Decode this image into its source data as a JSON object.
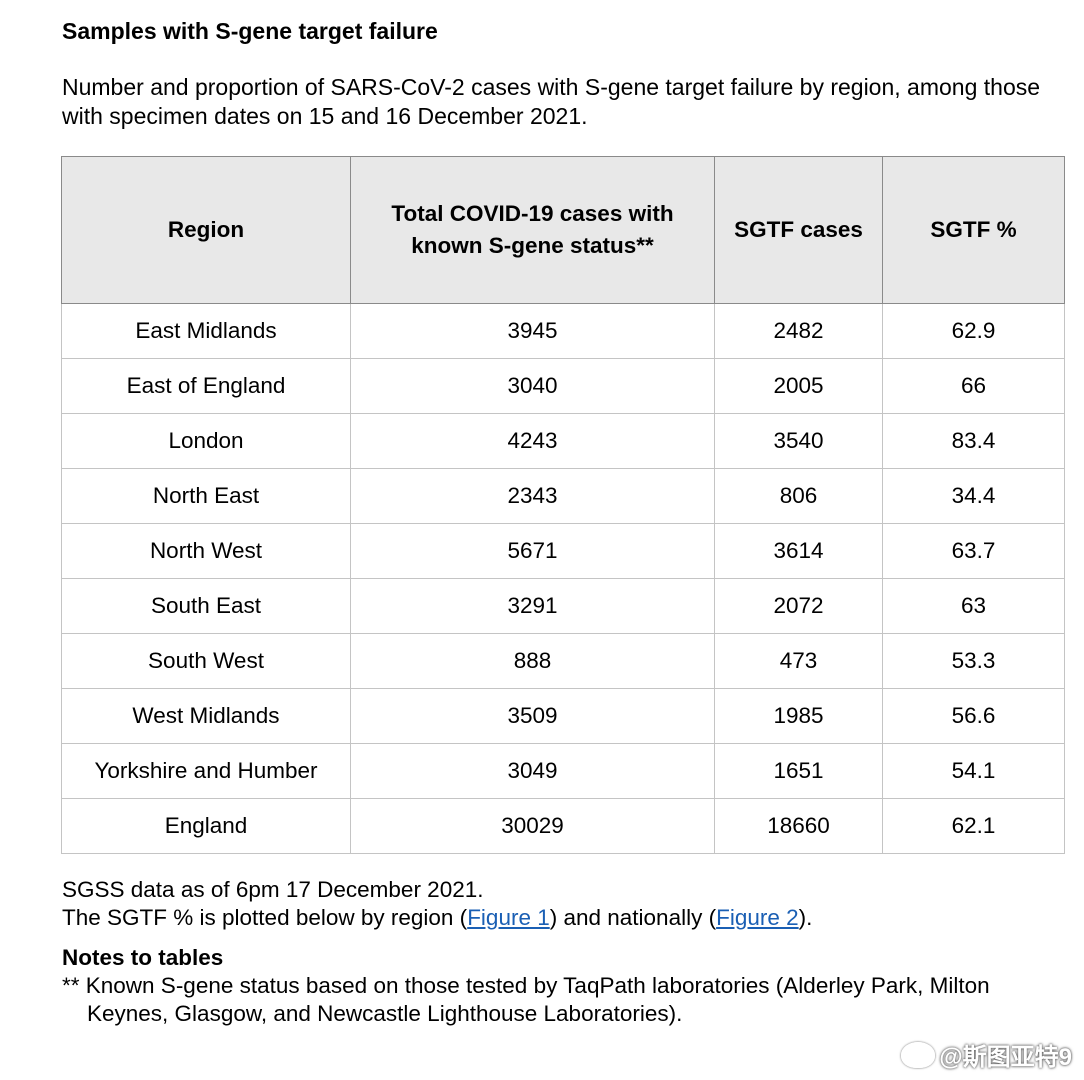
{
  "heading": "Samples with S-gene target failure",
  "intro": "Number and proportion of SARS-CoV-2 cases with S-gene target failure by region, among those with specimen dates on 15 and 16 December 2021.",
  "table": {
    "headers": [
      "Region",
      "Total COVID-19 cases with known S-gene status**",
      "SGTF cases",
      "SGTF %"
    ],
    "rows": [
      [
        "East Midlands",
        "3945",
        "2482",
        "62.9"
      ],
      [
        "East of England",
        "3040",
        "2005",
        "66"
      ],
      [
        "London",
        "4243",
        "3540",
        "83.4"
      ],
      [
        "North East",
        "2343",
        "806",
        "34.4"
      ],
      [
        "North West",
        "5671",
        "3614",
        "63.7"
      ],
      [
        "South East",
        "3291",
        "2072",
        "63"
      ],
      [
        "South West",
        "888",
        "473",
        "53.3"
      ],
      [
        "West Midlands",
        "3509",
        "1985",
        "56.6"
      ],
      [
        "Yorkshire and Humber",
        "3049",
        "1651",
        "54.1"
      ],
      [
        "England",
        "30029",
        "18660",
        "62.1"
      ]
    ]
  },
  "footer": {
    "line1": "SGSS data as of 6pm 17 December 2021.",
    "line2_a": "The SGTF % is plotted below by region (",
    "link1": "Figure 1",
    "line2_b": ") and nationally (",
    "link2": "Figure 2",
    "line2_c": ")."
  },
  "notes": {
    "title": "Notes to tables",
    "text": "** Known S-gene status based on those tested by TaqPath laboratories (Alderley Park, Milton Keynes, Glasgow, and Newcastle Lighthouse Laboratories)."
  },
  "watermark": {
    "text": "@斯图亚特9",
    "icon": "weibo-logo-icon"
  }
}
